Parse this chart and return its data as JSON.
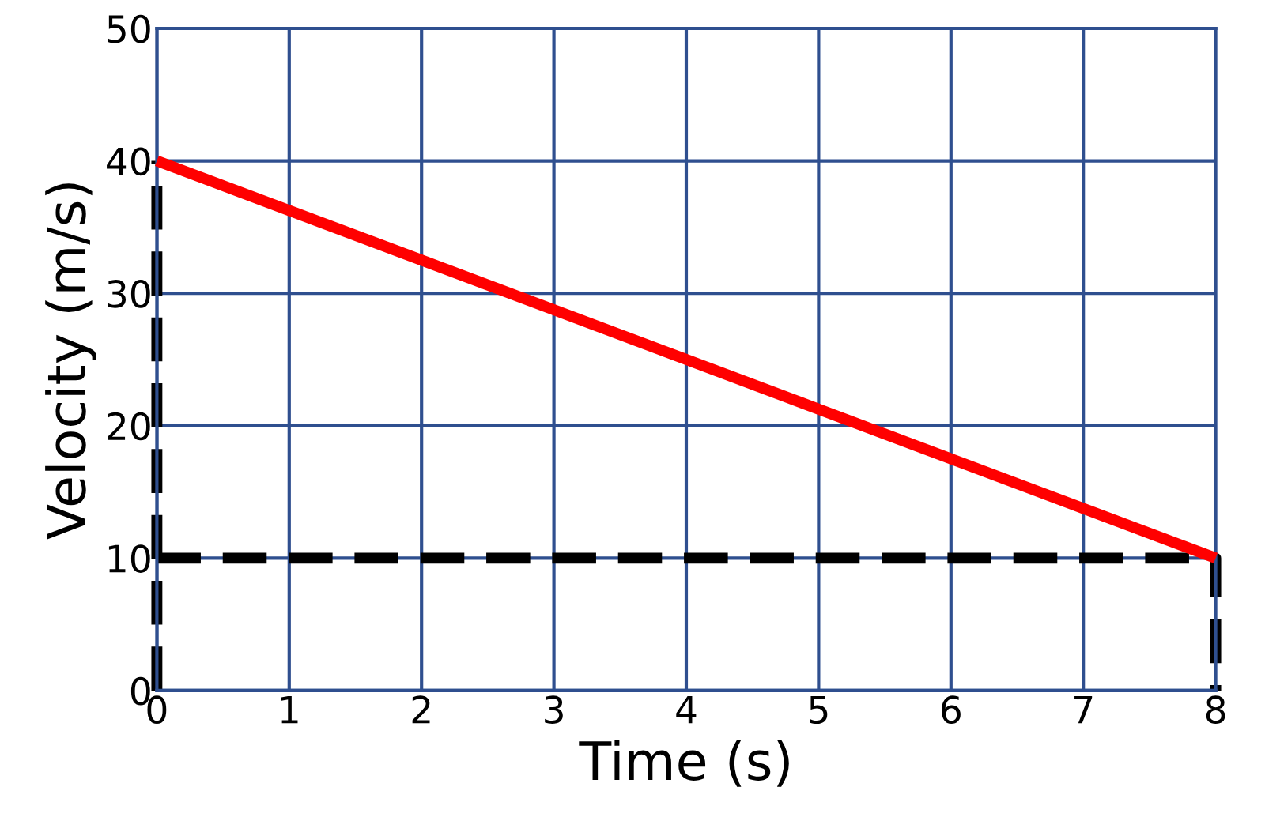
{
  "chart_data": {
    "type": "line",
    "xlabel": "Time (s)",
    "ylabel": "Velocity (m/s)",
    "xlim": [
      0,
      8
    ],
    "ylim": [
      0,
      50
    ],
    "xticks": [
      0,
      1,
      2,
      3,
      4,
      5,
      6,
      7,
      8
    ],
    "yticks": [
      0,
      10,
      20,
      30,
      40,
      50
    ],
    "grid": true,
    "marker": "none",
    "line_style": "solid",
    "x": [
      0,
      8
    ],
    "series": [
      {
        "color": "#ff0000",
        "values": [
          40,
          10
        ]
      }
    ]
  }
}
